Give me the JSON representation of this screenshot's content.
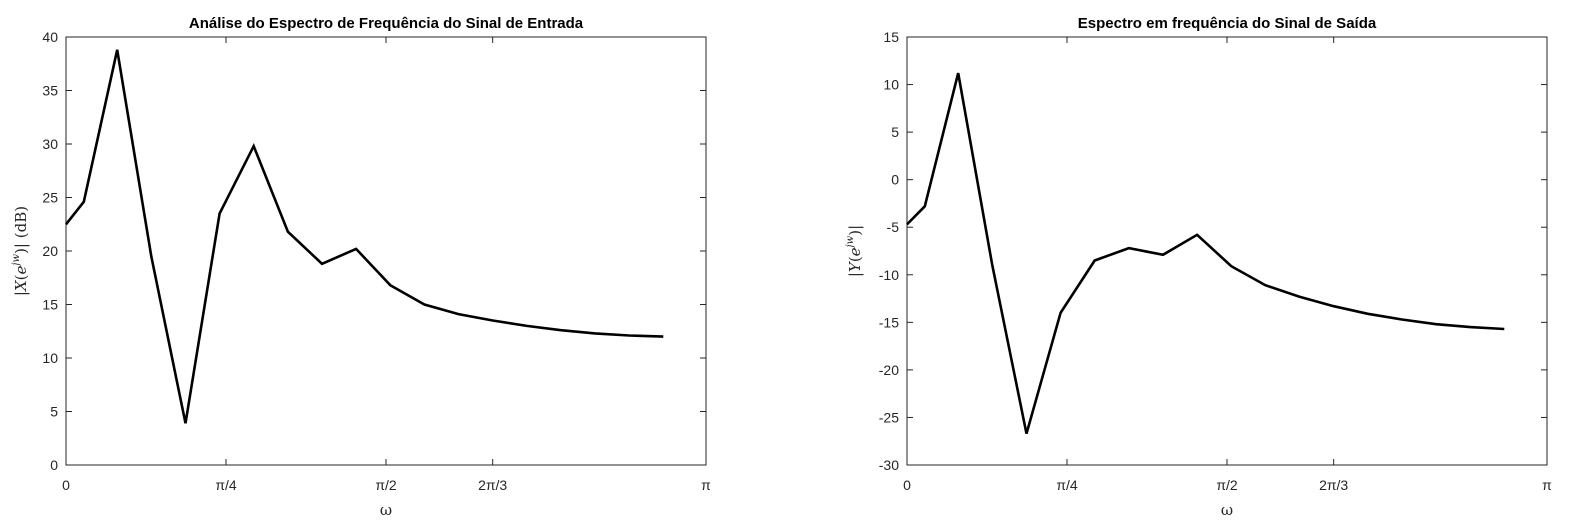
{
  "chart_data": [
    {
      "type": "line",
      "title": "Análise do Espectro de Frequência do Sinal de Entrada",
      "xlabel": "ω",
      "ylabel": "|X(e^{jw})| (dB)",
      "xlim": [
        0,
        3.14159
      ],
      "ylim": [
        0,
        40
      ],
      "xticks": [
        0,
        0.7854,
        1.5708,
        2.0944,
        3.14159
      ],
      "xtick_labels": [
        "0",
        "π/4",
        "π/2",
        "2π/3",
        "π"
      ],
      "yticks": [
        0,
        5,
        10,
        15,
        20,
        25,
        30,
        35,
        40
      ],
      "ytick_labels": [
        "0",
        "5",
        "10",
        "15",
        "20",
        "25",
        "30",
        "35",
        "40"
      ],
      "grid": false,
      "series": [
        {
          "x": [
            0,
            0.0873,
            0.2513,
            0.4189,
            0.5864,
            0.754,
            0.9215,
            1.0891,
            1.2566,
            1.4242,
            1.5917,
            1.7593,
            1.9268,
            2.0944,
            2.2619,
            2.4295,
            2.597,
            2.7646,
            2.9322
          ],
          "y": [
            22.5,
            24.6,
            38.8,
            19.5,
            3.9,
            23.5,
            29.8,
            21.8,
            18.8,
            20.2,
            16.8,
            15.0,
            14.1,
            13.5,
            13.0,
            12.6,
            12.3,
            12.1,
            12.0
          ]
        }
      ]
    },
    {
      "type": "line",
      "title": "Espectro em frequência do Sinal de Saída",
      "xlabel": "ω",
      "ylabel": "|Y(e^{jw})|",
      "xlim": [
        0,
        3.14159
      ],
      "ylim": [
        -30,
        15
      ],
      "xticks": [
        0,
        0.7854,
        1.5708,
        2.0944,
        3.14159
      ],
      "xtick_labels": [
        "0",
        "π/4",
        "π/2",
        "2π/3",
        "π"
      ],
      "yticks": [
        -30,
        -25,
        -20,
        -15,
        -10,
        -5,
        0,
        5,
        10,
        15
      ],
      "ytick_labels": [
        "-30",
        "-25",
        "-20",
        "-15",
        "-10",
        "-5",
        "0",
        "5",
        "10",
        "15"
      ],
      "grid": false,
      "series": [
        {
          "x": [
            0,
            0.0873,
            0.2513,
            0.4189,
            0.5864,
            0.754,
            0.9215,
            1.0891,
            1.2566,
            1.4242,
            1.5917,
            1.7593,
            1.9268,
            2.0944,
            2.2619,
            2.4295,
            2.597,
            2.7646,
            2.9322
          ],
          "y": [
            -4.7,
            -2.8,
            11.2,
            -9.0,
            -26.7,
            -14.0,
            -8.5,
            -7.2,
            -7.9,
            -5.8,
            -9.1,
            -11.1,
            -12.3,
            -13.3,
            -14.1,
            -14.7,
            -15.2,
            -15.5,
            -15.7
          ]
        }
      ]
    }
  ]
}
